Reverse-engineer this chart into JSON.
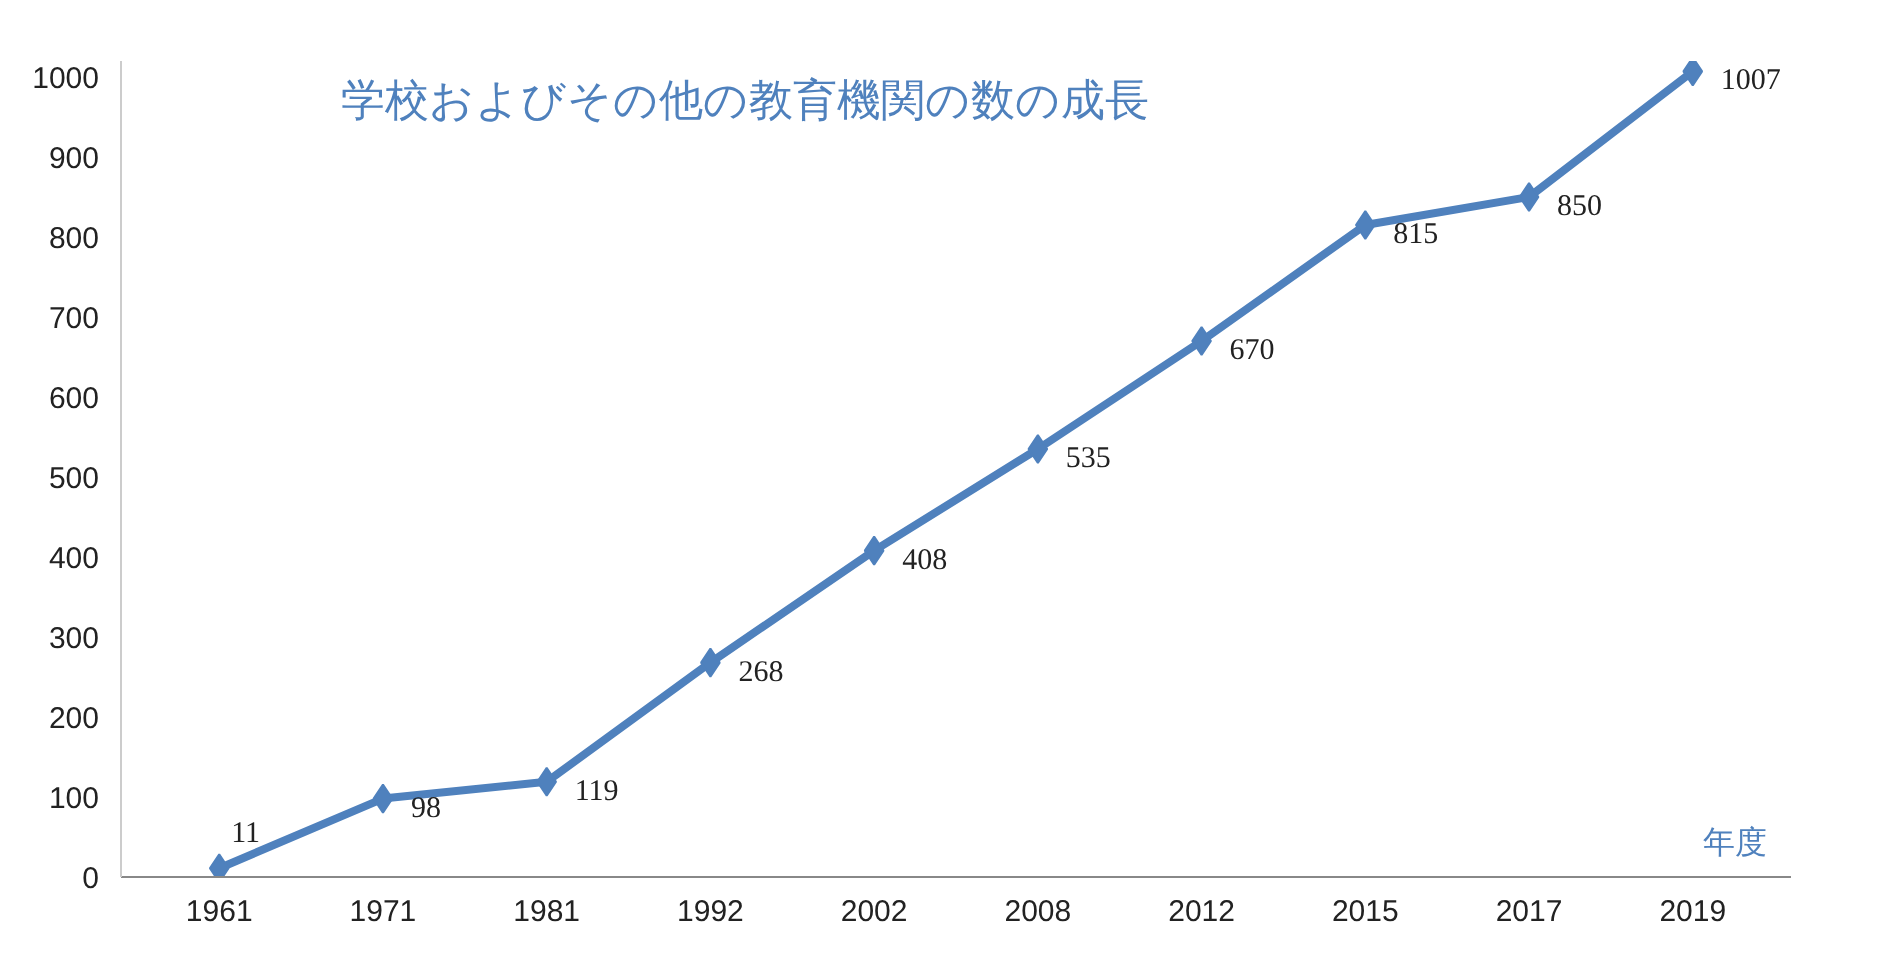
{
  "chart_data": {
    "type": "line",
    "title": "学校およびその他の教育機関の数の成長",
    "xlabel": "年度",
    "categories": [
      "1961",
      "1971",
      "1981",
      "1992",
      "2002",
      "2008",
      "2012",
      "2015",
      "2017",
      "2019"
    ],
    "series": [
      {
        "color": "#4f81bd",
        "values": [
          11,
          98,
          119,
          268,
          408,
          535,
          670,
          815,
          850,
          1007
        ]
      }
    ],
    "ylim": [
      0,
      1020
    ],
    "yticks": [
      0,
      100,
      200,
      300,
      400,
      500,
      600,
      700,
      800,
      900,
      1000
    ],
    "data_labels": true,
    "marker": "diamond",
    "grid": false
  }
}
